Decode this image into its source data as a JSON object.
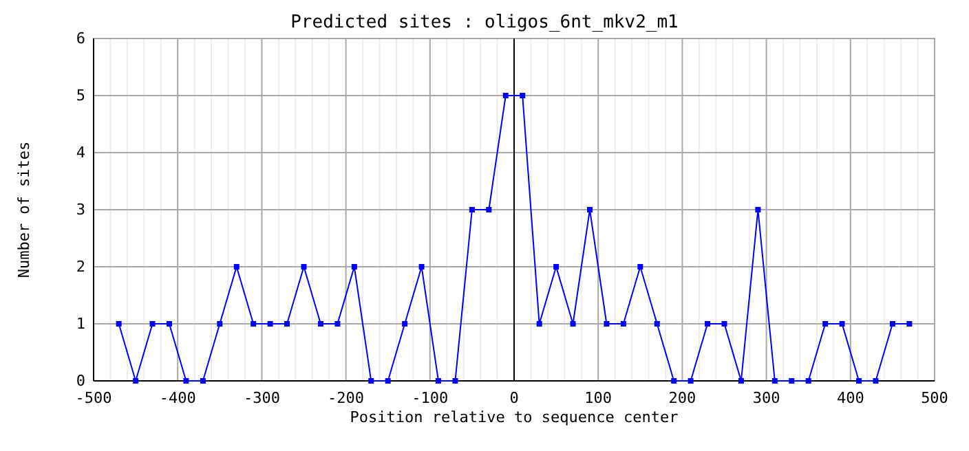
{
  "chart_data": {
    "type": "line",
    "title": "Predicted sites : oligos_6nt_mkv2_m1",
    "xlabel": "Position relative to sequence center",
    "ylabel": "Number of sites",
    "x": [
      -470,
      -450,
      -430,
      -410,
      -390,
      -370,
      -350,
      -330,
      -310,
      -290,
      -270,
      -250,
      -230,
      -210,
      -190,
      -170,
      -150,
      -130,
      -110,
      -90,
      -70,
      -50,
      -30,
      -10,
      10,
      30,
      50,
      70,
      90,
      110,
      130,
      150,
      170,
      190,
      210,
      230,
      250,
      270,
      290,
      310,
      330,
      350,
      370,
      390,
      410,
      430,
      450,
      470
    ],
    "series": [
      {
        "color": "#0000ff",
        "values": [
          1,
          0,
          1,
          1,
          0,
          0,
          1,
          2,
          1,
          1,
          1,
          2,
          1,
          1,
          2,
          0,
          0,
          1,
          2,
          0,
          0,
          3,
          3,
          5,
          5,
          1,
          2,
          1,
          3,
          1,
          1,
          2,
          1,
          0,
          0,
          1,
          1,
          0,
          3,
          0,
          0,
          0,
          1,
          1,
          0,
          0,
          1,
          1
        ]
      }
    ],
    "xlim": [
      -500,
      500
    ],
    "xticks": [
      -500,
      {
        "value": -480,
        "label": null
      },
      {
        "value": -460,
        "label": null
      },
      {
        "value": -440,
        "label": null
      },
      {
        "value": -420,
        "label": null
      },
      -400,
      {
        "value": -380,
        "label": null
      },
      {
        "value": -360,
        "label": null
      },
      {
        "value": -340,
        "label": null
      },
      {
        "value": -320,
        "label": null
      },
      -300,
      {
        "value": -280,
        "label": null
      },
      {
        "value": -260,
        "label": null
      },
      {
        "value": -240,
        "label": null
      },
      {
        "value": -220,
        "label": null
      },
      -200,
      {
        "value": -180,
        "label": null
      },
      {
        "value": -160,
        "label": null
      },
      {
        "value": -140,
        "label": null
      },
      {
        "value": -120,
        "label": null
      },
      -100,
      {
        "value": -80,
        "label": null
      },
      {
        "value": -60,
        "label": null
      },
      {
        "value": -40,
        "label": null
      },
      {
        "value": -20,
        "label": null
      },
      0,
      {
        "value": 20,
        "label": null
      },
      {
        "value": 40,
        "label": null
      },
      {
        "value": 60,
        "label": null
      },
      {
        "value": 80,
        "label": null
      },
      100,
      {
        "value": 120,
        "label": null
      },
      {
        "value": 140,
        "label": null
      },
      {
        "value": 160,
        "label": null
      },
      {
        "value": 180,
        "label": null
      },
      200,
      {
        "value": 220,
        "label": null
      },
      {
        "value": 240,
        "label": null
      },
      {
        "value": 260,
        "label": null
      },
      {
        "value": 280,
        "label": null
      },
      300,
      {
        "value": 320,
        "label": null
      },
      {
        "value": 340,
        "label": null
      },
      {
        "value": 360,
        "label": null
      },
      {
        "value": 380,
        "label": null
      },
      400,
      {
        "value": 420,
        "label": null
      },
      {
        "value": 440,
        "label": null
      },
      {
        "value": 460,
        "label": null
      },
      {
        "value": 480,
        "label": null
      },
      500
    ],
    "ylim": [
      0,
      6
    ],
    "yticks": [
      0,
      1,
      2,
      3,
      4,
      5,
      6
    ],
    "grid": true,
    "marker": "square",
    "line_style": "solid",
    "ref_lines": [
      {
        "axis": "x",
        "value": 0,
        "color": "#000000"
      }
    ]
  }
}
